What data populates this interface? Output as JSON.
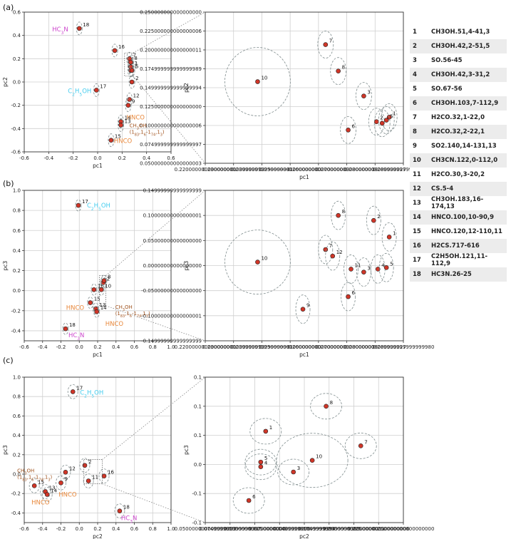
{
  "panels": [
    "(a)",
    "(b)",
    "(c)"
  ],
  "legend": [
    {
      "n": "1",
      "label": "CH3OH.51,4-41,3"
    },
    {
      "n": "2",
      "label": "CH3OH.42,2-51,5"
    },
    {
      "n": "3",
      "label": "SO.56-45"
    },
    {
      "n": "4",
      "label": "CH3OH.42,3-31,2"
    },
    {
      "n": "5",
      "label": "SO.67-56"
    },
    {
      "n": "6",
      "label": "CH3OH.103,7-112,9"
    },
    {
      "n": "7",
      "label": "H2CO.32,1-22,0"
    },
    {
      "n": "8",
      "label": "H2CO.32,2-22,1"
    },
    {
      "n": "9",
      "label": "SO2.140,14-131,13"
    },
    {
      "n": "10",
      "label": "CH3CN.122,0-112,0"
    },
    {
      "n": "11",
      "label": "H2CO.30,3-20,2"
    },
    {
      "n": "12",
      "label": "CS.5-4"
    },
    {
      "n": "13",
      "label": "CH3OH.183,16-174,13"
    },
    {
      "n": "14",
      "label": "HNCO.100,10-90,9"
    },
    {
      "n": "15",
      "label": "HNCO.120,12-110,11"
    },
    {
      "n": "16",
      "label": "H2CS.717-616"
    },
    {
      "n": "17",
      "label": "C2H5OH.121,11-112,9"
    },
    {
      "n": "18",
      "label": "HC3N.26-25"
    }
  ],
  "annotations": {
    "hc3n": "HC3N",
    "c2h5oh": "C2H5OH",
    "hnco": "HNCO",
    "ch3oh": "CH3OH",
    "ch3oh_sub": "(183,16-174,13)"
  },
  "colors": {
    "point": "#d03628",
    "ellipse": "#7f8c8d",
    "magenta": "#cc44cc",
    "cyan": "#44ccee",
    "orange": "#e8873a",
    "brown": "#a0521d"
  },
  "chart_data": [
    {
      "id": "a-left",
      "type": "scatter",
      "xlabel": "pc1",
      "ylabel": "pc2",
      "xlim": [
        -0.6,
        0.6
      ],
      "ylim": [
        -0.6,
        0.6
      ],
      "xticks": [
        -0.6,
        -0.4,
        -0.2,
        0.0,
        0.2,
        0.4,
        0.6
      ],
      "yticks": [
        -0.6,
        -0.4,
        -0.2,
        0.0,
        0.2,
        0.4,
        0.6
      ],
      "points": [
        {
          "n": "18",
          "x": -0.15,
          "y": 0.46
        },
        {
          "n": "16",
          "x": 0.14,
          "y": 0.27
        },
        {
          "n": "17",
          "x": -0.01,
          "y": -0.07
        },
        {
          "n": "2",
          "x": 0.28,
          "y": 0.0
        },
        {
          "n": "12",
          "x": 0.26,
          "y": -0.15
        },
        {
          "n": "9",
          "x": 0.25,
          "y": -0.2
        },
        {
          "n": "14",
          "x": 0.19,
          "y": -0.34
        },
        {
          "n": "13",
          "x": 0.19,
          "y": -0.37
        },
        {
          "n": "15",
          "x": 0.11,
          "y": -0.5
        },
        {
          "n": "1",
          "x": 0.27,
          "y": 0.1
        },
        {
          "n": "3",
          "x": 0.27,
          "y": 0.13
        },
        {
          "n": "5",
          "x": 0.28,
          "y": 0.1
        },
        {
          "n": "7",
          "x": 0.26,
          "y": 0.2
        },
        {
          "n": "8",
          "x": 0.27,
          "y": 0.17
        }
      ]
    },
    {
      "id": "a-right",
      "type": "scatter",
      "xlabel": "pc1",
      "ylabel": "pc2",
      "xlim": [
        0.22,
        0.29
      ],
      "ylim": [
        0.05,
        0.25
      ],
      "xticks": [
        0.22,
        0.23,
        0.24,
        0.25,
        0.26,
        0.27,
        0.28,
        0.29
      ],
      "yticks": [
        0.05,
        0.075,
        0.1,
        0.125,
        0.15,
        0.175,
        0.2,
        0.225,
        0.25
      ],
      "points": [
        {
          "n": "10",
          "x": 0.2385,
          "y": 0.158
        },
        {
          "n": "7",
          "x": 0.2625,
          "y": 0.207
        },
        {
          "n": "8",
          "x": 0.267,
          "y": 0.172
        },
        {
          "n": "3",
          "x": 0.276,
          "y": 0.139
        },
        {
          "n": "6",
          "x": 0.2705,
          "y": 0.094
        },
        {
          "n": "1",
          "x": 0.285,
          "y": 0.111
        },
        {
          "n": "2",
          "x": 0.2805,
          "y": 0.105
        },
        {
          "n": "4",
          "x": 0.2825,
          "y": 0.103
        },
        {
          "n": "5",
          "x": 0.284,
          "y": 0.107
        }
      ]
    },
    {
      "id": "b-left",
      "type": "scatter",
      "xlabel": "pc1",
      "ylabel": "pc3",
      "xlim": [
        -0.6,
        1.0
      ],
      "ylim": [
        -0.5,
        1.0
      ],
      "xticks": [
        -0.6,
        -0.4,
        -0.2,
        0.0,
        0.2,
        0.4,
        0.6,
        0.8,
        1.0
      ],
      "yticks": [
        -0.4,
        -0.2,
        0.0,
        0.2,
        0.4,
        0.6,
        0.8,
        1.0
      ],
      "points": [
        {
          "n": "17",
          "x": -0.01,
          "y": 0.85
        },
        {
          "n": "16",
          "x": 0.16,
          "y": 0.01
        },
        {
          "n": "15",
          "x": 0.12,
          "y": -0.12
        },
        {
          "n": "18",
          "x": -0.15,
          "y": -0.38
        },
        {
          "n": "13",
          "x": 0.18,
          "y": -0.18
        },
        {
          "n": "14",
          "x": 0.19,
          "y": -0.21
        },
        {
          "n": "2",
          "x": 0.26,
          "y": 0.08
        },
        {
          "n": "8",
          "x": 0.27,
          "y": 0.1
        },
        {
          "n": "10",
          "x": 0.24,
          "y": 0.01
        }
      ]
    },
    {
      "id": "b-right",
      "type": "scatter",
      "xlabel": "pc1",
      "ylabel": "pc3",
      "xlim": [
        0.22,
        0.29
      ],
      "ylim": [
        -0.15,
        0.15
      ],
      "xticks": [
        0.22,
        0.23,
        0.24,
        0.25,
        0.26,
        0.27,
        0.28,
        0.29
      ],
      "yticks": [
        -0.15,
        -0.1,
        -0.05,
        0.0,
        0.05,
        0.1,
        0.15
      ],
      "points": [
        {
          "n": "10",
          "x": 0.2385,
          "y": 0.007
        },
        {
          "n": "7",
          "x": 0.2625,
          "y": 0.032
        },
        {
          "n": "12",
          "x": 0.265,
          "y": 0.019
        },
        {
          "n": "8",
          "x": 0.267,
          "y": 0.1
        },
        {
          "n": "2",
          "x": 0.2795,
          "y": 0.09
        },
        {
          "n": "1",
          "x": 0.285,
          "y": 0.057
        },
        {
          "n": "11",
          "x": 0.2715,
          "y": -0.007
        },
        {
          "n": "3",
          "x": 0.276,
          "y": -0.013
        },
        {
          "n": "4",
          "x": 0.281,
          "y": -0.007
        },
        {
          "n": "5",
          "x": 0.284,
          "y": -0.004
        },
        {
          "n": "6",
          "x": 0.2705,
          "y": -0.062
        },
        {
          "n": "9",
          "x": 0.2545,
          "y": -0.087
        }
      ]
    },
    {
      "id": "c-left",
      "type": "scatter",
      "xlabel": "pc2",
      "ylabel": "pc3",
      "xlim": [
        -0.6,
        1.0
      ],
      "ylim": [
        -0.5,
        1.0
      ],
      "xticks": [
        -0.6,
        -0.4,
        -0.2,
        0.0,
        0.2,
        0.4,
        0.6,
        0.8,
        1.0
      ],
      "yticks": [
        -0.4,
        -0.2,
        0.0,
        0.2,
        0.4,
        0.6,
        0.8,
        1.0
      ],
      "points": [
        {
          "n": "17",
          "x": -0.07,
          "y": 0.85
        },
        {
          "n": "2",
          "x": 0.06,
          "y": 0.09
        },
        {
          "n": "12",
          "x": -0.15,
          "y": 0.02
        },
        {
          "n": "9",
          "x": -0.2,
          "y": -0.09
        },
        {
          "n": "11",
          "x": 0.1,
          "y": -0.07
        },
        {
          "n": "16",
          "x": 0.27,
          "y": -0.02
        },
        {
          "n": "13",
          "x": -0.37,
          "y": -0.18
        },
        {
          "n": "14",
          "x": -0.35,
          "y": -0.21
        },
        {
          "n": "15",
          "x": -0.49,
          "y": -0.12
        },
        {
          "n": "18",
          "x": 0.44,
          "y": -0.38
        }
      ]
    },
    {
      "id": "c-right",
      "type": "scatter",
      "xlabel": "pc2",
      "ylabel": "pc3",
      "xlim": [
        0.05,
        0.25
      ],
      "ylim": [
        -0.1,
        0.15
      ],
      "xticks": [
        0.05,
        0.075,
        0.1,
        0.125,
        0.15,
        0.175,
        0.2,
        0.225,
        0.25
      ],
      "yticks": [
        -0.1,
        -0.05,
        0.0,
        0.05,
        0.1,
        0.15
      ],
      "points": [
        {
          "n": "1",
          "x": 0.111,
          "y": 0.057
        },
        {
          "n": "8",
          "x": 0.172,
          "y": 0.1
        },
        {
          "n": "7",
          "x": 0.207,
          "y": 0.032
        },
        {
          "n": "5",
          "x": 0.106,
          "y": 0.004
        },
        {
          "n": "4",
          "x": 0.106,
          "y": -0.004
        },
        {
          "n": "10",
          "x": 0.158,
          "y": 0.007
        },
        {
          "n": "3",
          "x": 0.139,
          "y": -0.013
        },
        {
          "n": "6",
          "x": 0.094,
          "y": -0.062
        }
      ]
    }
  ]
}
